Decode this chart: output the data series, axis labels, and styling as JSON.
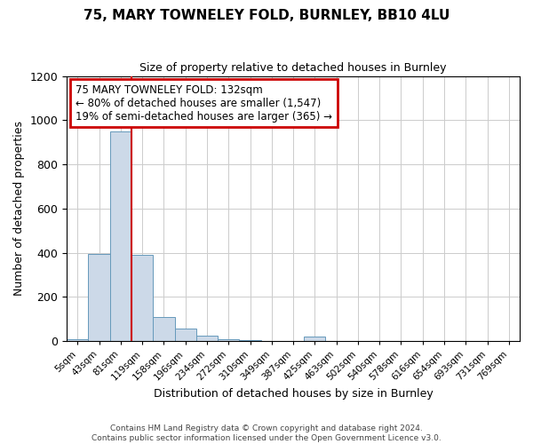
{
  "title": "75, MARY TOWNELEY FOLD, BURNLEY, BB10 4LU",
  "subtitle": "Size of property relative to detached houses in Burnley",
  "xlabel": "Distribution of detached houses by size in Burnley",
  "ylabel": "Number of detached properties",
  "categories": [
    "5sqm",
    "43sqm",
    "81sqm",
    "119sqm",
    "158sqm",
    "196sqm",
    "234sqm",
    "272sqm",
    "310sqm",
    "349sqm",
    "387sqm",
    "425sqm",
    "463sqm",
    "502sqm",
    "540sqm",
    "578sqm",
    "616sqm",
    "654sqm",
    "693sqm",
    "731sqm",
    "769sqm"
  ],
  "values": [
    10,
    395,
    950,
    390,
    110,
    55,
    25,
    10,
    5,
    0,
    0,
    20,
    0,
    0,
    0,
    0,
    0,
    0,
    0,
    0,
    0
  ],
  "bar_color": "#ccd9e8",
  "bar_edge_color": "#6699bb",
  "ylim": [
    0,
    1200
  ],
  "yticks": [
    0,
    200,
    400,
    600,
    800,
    1000,
    1200
  ],
  "property_line_x": 2.5,
  "property_line_color": "#cc0000",
  "annotation_text": "75 MARY TOWNELEY FOLD: 132sqm\n← 80% of detached houses are smaller (1,547)\n19% of semi-detached houses are larger (365) →",
  "annotation_box_color": "#cc0000",
  "footer": "Contains HM Land Registry data © Crown copyright and database right 2024.\nContains public sector information licensed under the Open Government Licence v3.0.",
  "background_color": "#ffffff",
  "grid_color": "#cccccc"
}
